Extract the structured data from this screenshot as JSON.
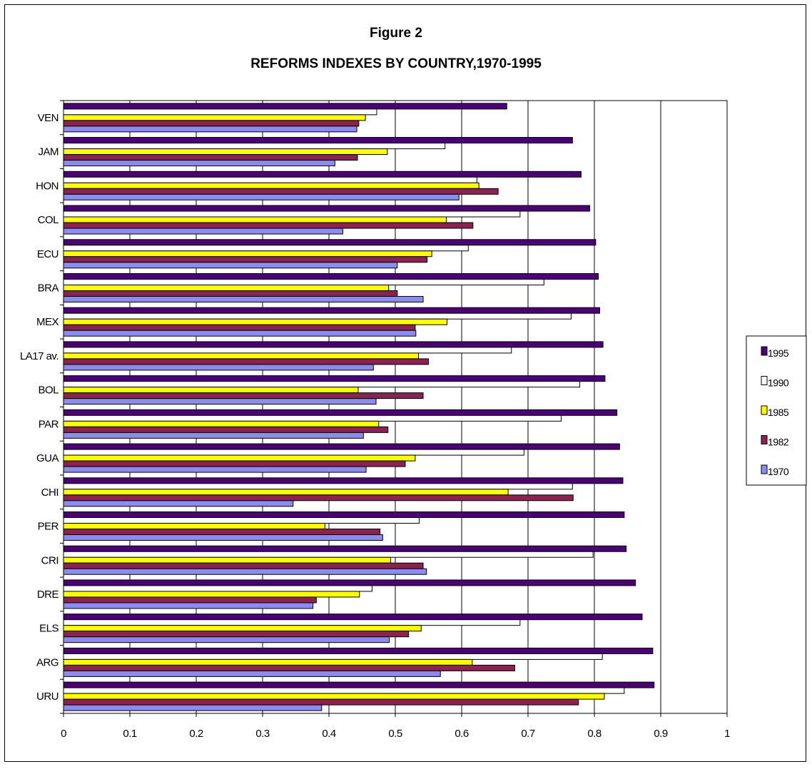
{
  "chart_data": {
    "type": "bar",
    "orientation": "horizontal",
    "title": "Figure 2",
    "subtitle": "REFORMS INDEXES BY COUNTRY,1970-1995",
    "xlabel": "",
    "ylabel": "",
    "xlim": [
      0,
      1
    ],
    "x_ticks": [
      "0",
      "0.1",
      "0.2",
      "0.3",
      "0.4",
      "0.5",
      "0.6",
      "0.7",
      "0.8",
      "0.9",
      "1"
    ],
    "grid": "vertical major gridlines",
    "legend_position": "right",
    "categories": [
      "VEN",
      "JAM",
      "HON",
      "COL",
      "ECU",
      "BRA",
      "MEX",
      "LA17 av.",
      "BOL",
      "PAR",
      "GUA",
      "CHI",
      "PER",
      "CRI",
      "DRE",
      "ELS",
      "ARG",
      "URU"
    ],
    "series": [
      {
        "name": "1995",
        "color": "#4B0073",
        "values": [
          0.668,
          0.767,
          0.78,
          0.793,
          0.802,
          0.806,
          0.808,
          0.813,
          0.816,
          0.834,
          0.838,
          0.843,
          0.845,
          0.848,
          0.862,
          0.872,
          0.888,
          0.89
        ]
      },
      {
        "name": "1990",
        "color": "#FFFFFF",
        "values": [
          0.472,
          0.575,
          0.623,
          0.688,
          0.61,
          0.724,
          0.765,
          0.675,
          0.778,
          0.75,
          0.694,
          0.767,
          0.536,
          0.798,
          0.465,
          0.688,
          0.812,
          0.845
        ]
      },
      {
        "name": "1985",
        "color": "#FFFF00",
        "values": [
          0.455,
          0.488,
          0.626,
          0.577,
          0.555,
          0.49,
          0.578,
          0.535,
          0.444,
          0.475,
          0.53,
          0.67,
          0.394,
          0.493,
          0.446,
          0.539,
          0.616,
          0.815
        ]
      },
      {
        "name": "1982",
        "color": "#8B2252",
        "values": [
          0.445,
          0.443,
          0.655,
          0.617,
          0.548,
          0.503,
          0.53,
          0.55,
          0.542,
          0.489,
          0.515,
          0.768,
          0.477,
          0.542,
          0.381,
          0.52,
          0.68,
          0.776
        ]
      },
      {
        "name": "1970",
        "color": "#8C8CF0",
        "values": [
          0.442,
          0.409,
          0.596,
          0.421,
          0.503,
          0.542,
          0.531,
          0.467,
          0.471,
          0.452,
          0.456,
          0.346,
          0.481,
          0.547,
          0.376,
          0.491,
          0.568,
          0.389
        ]
      }
    ]
  }
}
